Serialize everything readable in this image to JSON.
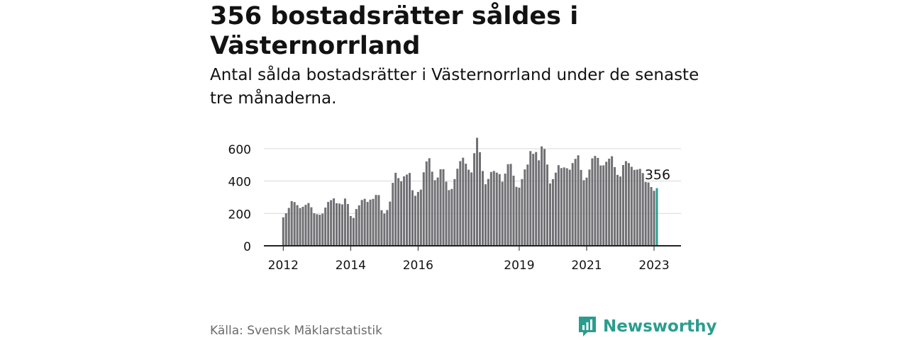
{
  "header": {
    "title": "356 bostadsrätter såldes i Västernorrland",
    "subtitle": "Antal sålda bostadsrätter i Västernorrland under de senaste tre månaderna."
  },
  "footer": {
    "source": "Källa: Svensk Mäklarstatistik",
    "brand": "Newsworthy"
  },
  "colors": {
    "bar": "#6f6f74",
    "highlight": "#2a9d8f",
    "grid": "#d9d9d9",
    "axis": "#222222",
    "text": "#121212",
    "muted": "#6b6b6b",
    "brand": "#2a9d8f"
  },
  "chart_data": {
    "type": "bar",
    "ylim": [
      0,
      700
    ],
    "yticks": [
      0,
      200,
      400,
      600
    ],
    "grid": true,
    "x_start": "2012-01",
    "xticks": [
      "2012",
      "2014",
      "2016",
      "2019",
      "2021",
      "2023"
    ],
    "highlight_label": "356",
    "values": [
      176,
      201,
      234,
      276,
      270,
      251,
      233,
      241,
      253,
      264,
      238,
      201,
      195,
      192,
      199,
      236,
      271,
      282,
      293,
      263,
      261,
      256,
      292,
      258,
      184,
      172,
      227,
      250,
      283,
      290,
      271,
      285,
      290,
      314,
      313,
      220,
      199,
      221,
      273,
      389,
      451,
      418,
      398,
      429,
      440,
      450,
      343,
      309,
      333,
      347,
      454,
      521,
      541,
      458,
      405,
      422,
      473,
      473,
      396,
      344,
      351,
      412,
      476,
      523,
      544,
      507,
      470,
      453,
      572,
      667,
      578,
      462,
      380,
      413,
      456,
      462,
      452,
      443,
      396,
      446,
      504,
      506,
      433,
      364,
      359,
      412,
      472,
      502,
      585,
      568,
      579,
      528,
      614,
      598,
      502,
      385,
      412,
      452,
      498,
      480,
      484,
      479,
      470,
      511,
      537,
      559,
      469,
      405,
      421,
      471,
      540,
      555,
      543,
      496,
      497,
      519,
      538,
      553,
      486,
      438,
      428,
      499,
      523,
      511,
      488,
      469,
      471,
      475,
      449,
      394,
      391,
      363,
      340,
      356
    ]
  }
}
